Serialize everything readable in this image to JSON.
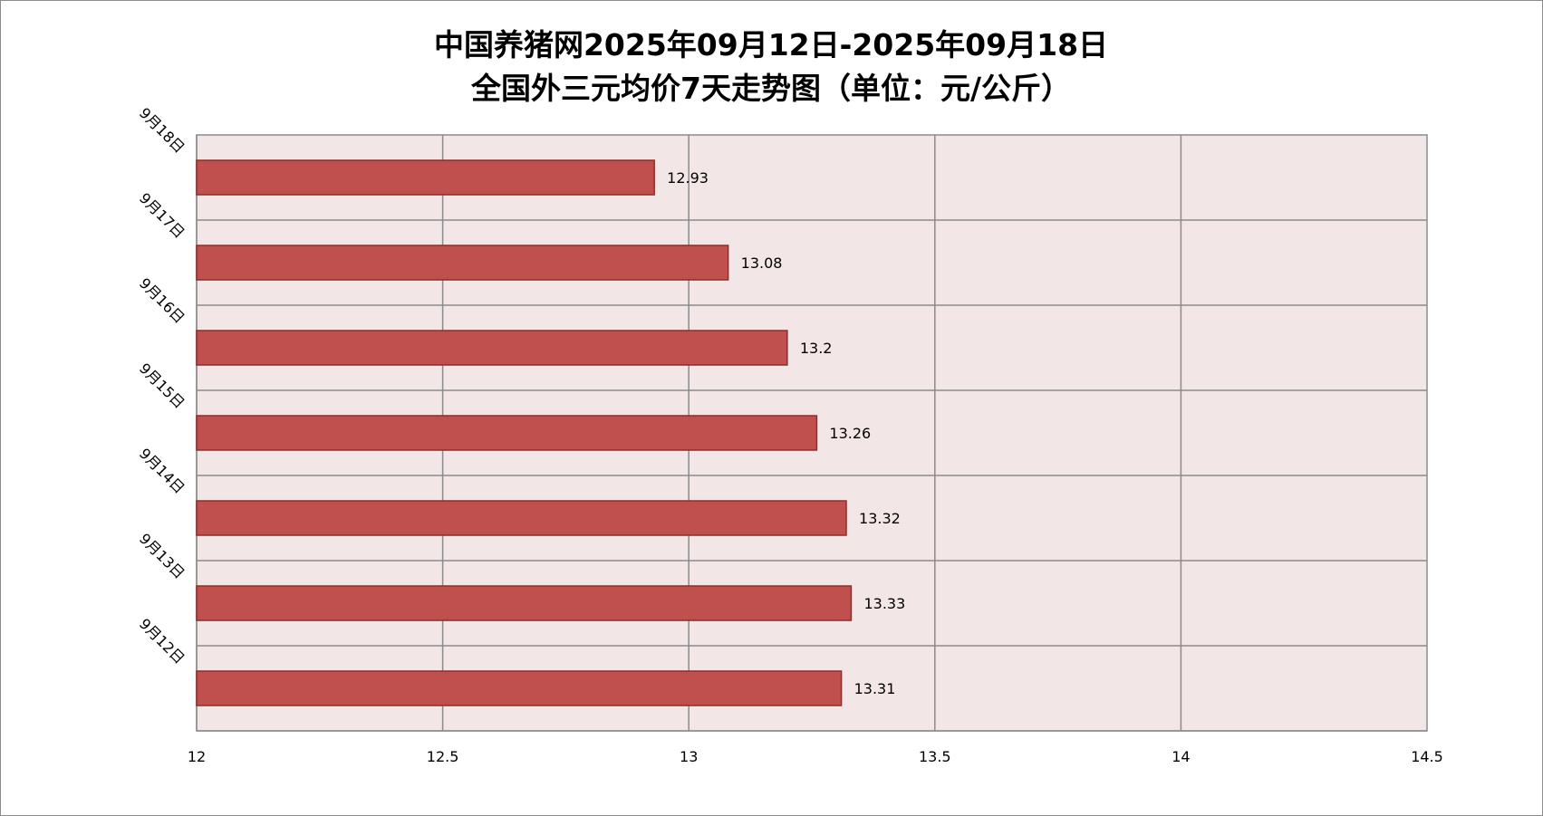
{
  "chart_data": {
    "type": "bar",
    "orientation": "horizontal",
    "title_line1": "中国养猪网2025年09月12日-2025年09月18日",
    "title_line2": "全国外三元均价7天走势图（单位：元/公斤）",
    "categories": [
      "9月18日",
      "9月17日",
      "9月16日",
      "9月15日",
      "9月14日",
      "9月13日",
      "9月12日"
    ],
    "values": [
      12.93,
      13.08,
      13.2,
      13.26,
      13.32,
      13.33,
      13.31
    ],
    "data_labels": [
      "12.93",
      "13.08",
      "13.2",
      "13.26",
      "13.32",
      "13.33",
      "13.31"
    ],
    "xlim": [
      12,
      14.5
    ],
    "x_ticks": [
      12,
      12.5,
      13,
      13.5,
      14,
      14.5
    ],
    "x_tick_labels": [
      "12",
      "12.5",
      "13",
      "13.5",
      "14",
      "14.5"
    ],
    "grid": true,
    "legend": "none",
    "colors": {
      "bar_fill": "#C0504D",
      "bar_stroke": "#8C2E2B",
      "plot_background": "#F2E6E6",
      "grid": "#8C8C8C"
    }
  }
}
